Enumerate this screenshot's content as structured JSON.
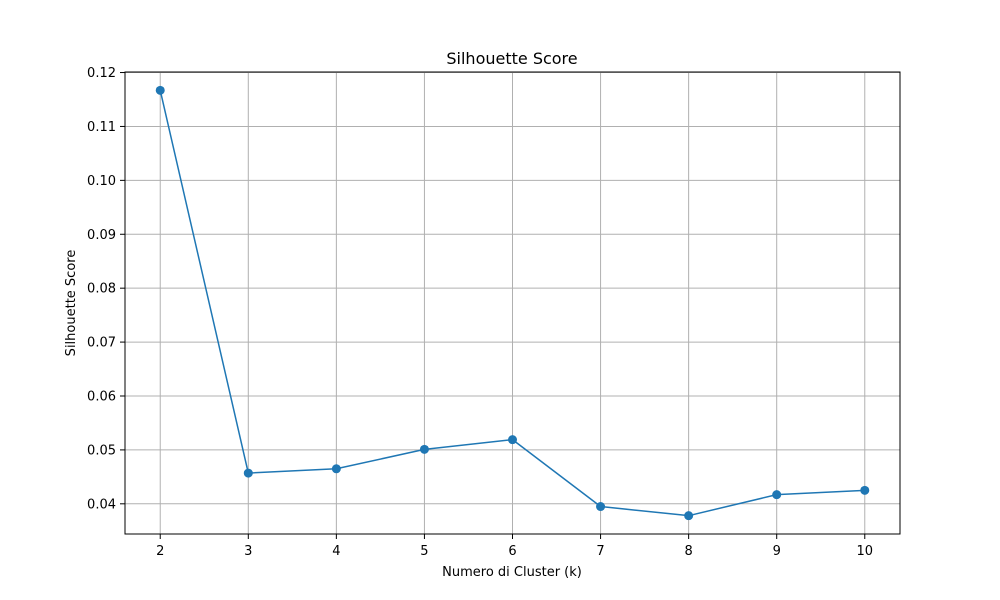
{
  "chart_data": {
    "type": "line",
    "title": "Silhouette Score",
    "xlabel": "Numero di Cluster (k)",
    "ylabel": "Silhouette Score",
    "x": [
      2,
      3,
      4,
      5,
      6,
      7,
      8,
      9,
      10
    ],
    "series": [
      {
        "values": [
          0.1167,
          0.0457,
          0.0465,
          0.0501,
          0.0519,
          0.0395,
          0.0378,
          0.0417,
          0.0425
        ],
        "color": "#1f77b4",
        "marker": "circle"
      }
    ],
    "xticks": [
      "2",
      "3",
      "4",
      "5",
      "6",
      "7",
      "8",
      "9",
      "10"
    ],
    "yticks": [
      "0.04",
      "0.05",
      "0.06",
      "0.07",
      "0.08",
      "0.09",
      "0.10",
      "0.11",
      "0.12"
    ],
    "xlim": [
      1.6,
      10.4
    ],
    "ylim": [
      0.0344,
      0.1201
    ],
    "grid": true,
    "colors": {
      "line": "#1f77b4",
      "grid": "#b0b0b0",
      "axes": "#000000"
    }
  }
}
